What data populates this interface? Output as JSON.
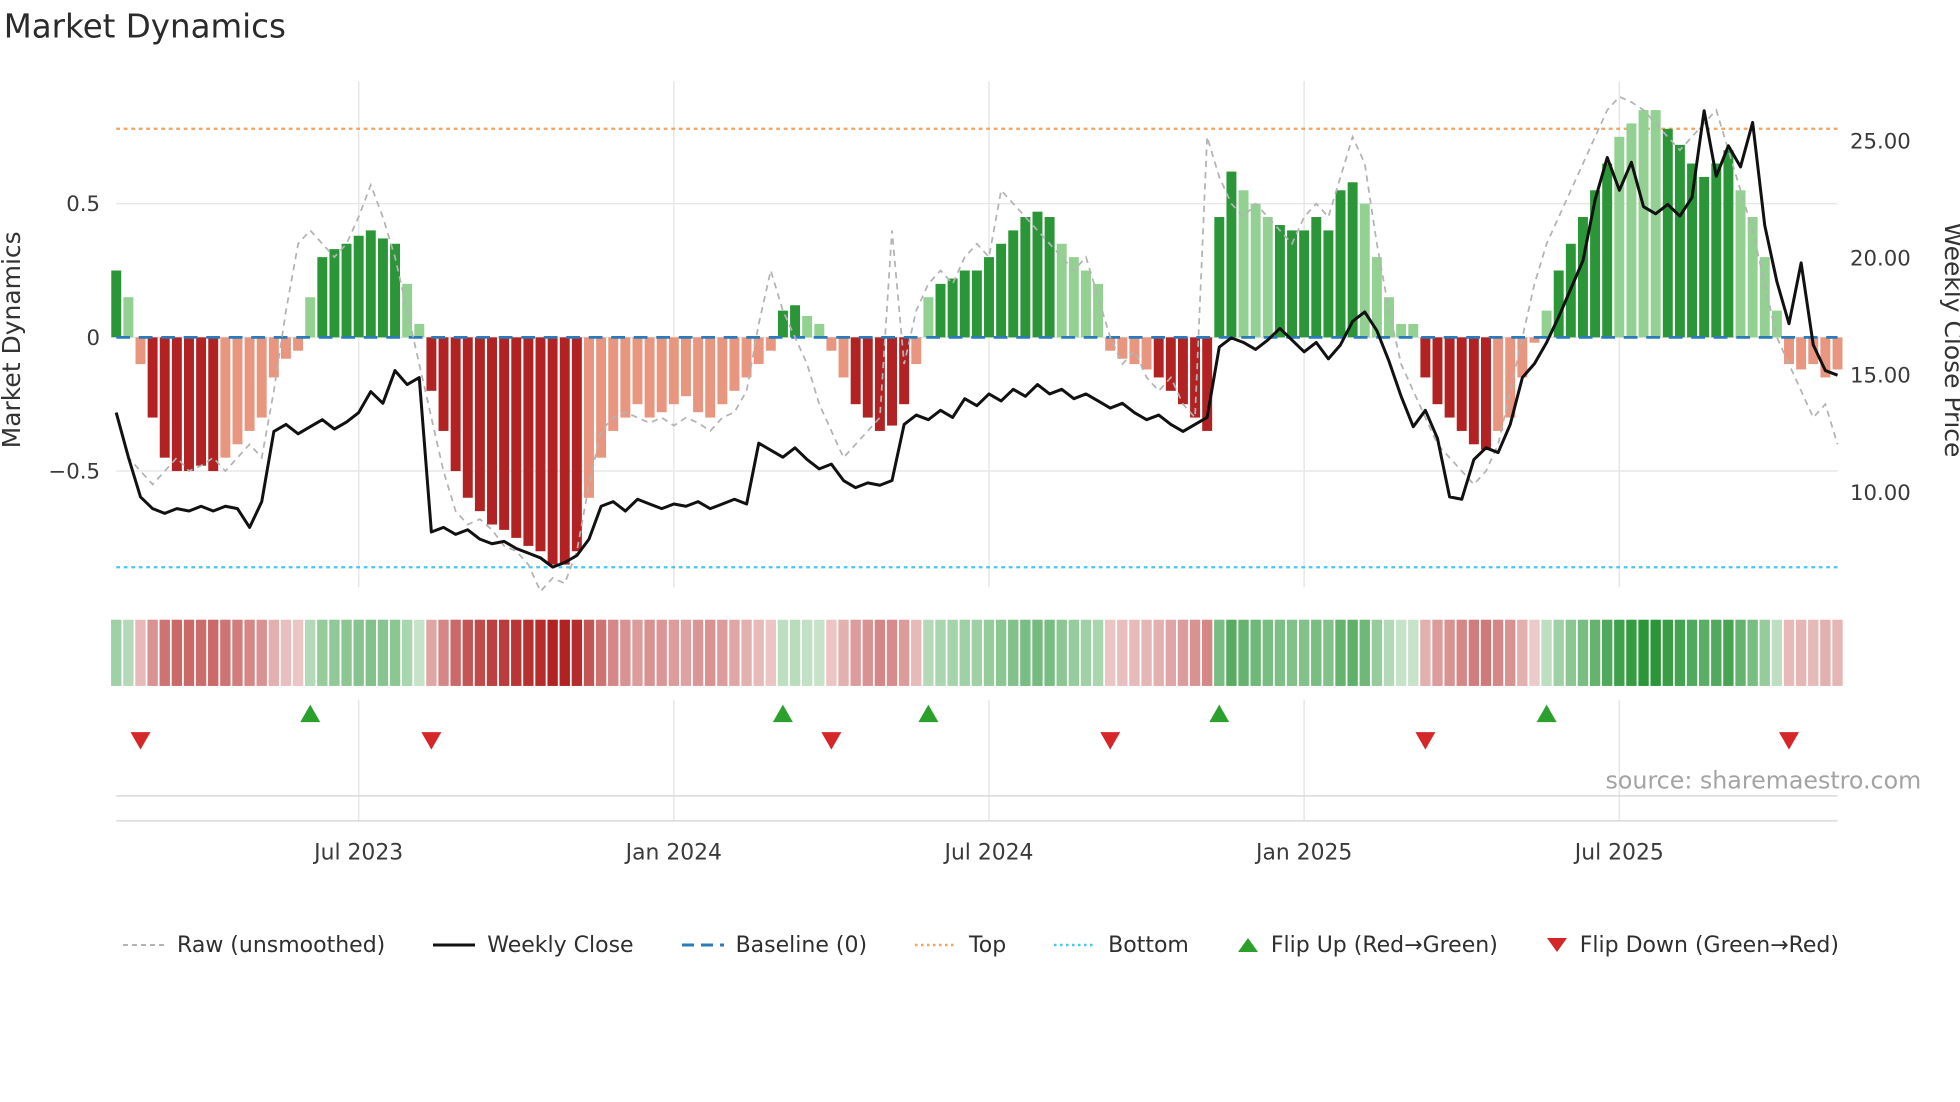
{
  "title": "Market Dynamics",
  "source": "source: sharemaestro.com",
  "legend": [
    {
      "id": "raw",
      "label": "Raw (unsmoothed)",
      "icon": "dashed-gray-line"
    },
    {
      "id": "weekly-close",
      "label": "Weekly Close",
      "icon": "solid-black-line"
    },
    {
      "id": "baseline",
      "label": "Baseline (0)",
      "icon": "dashed-blue-line"
    },
    {
      "id": "top",
      "label": "Top",
      "icon": "dotted-orange-line"
    },
    {
      "id": "bottom",
      "label": "Bottom",
      "icon": "dotted-cyan-line"
    },
    {
      "id": "flip-up",
      "label": "Flip Up (Red→Green)",
      "icon": "green-up-triangle"
    },
    {
      "id": "flip-down",
      "label": "Flip Down (Green→Red)",
      "icon": "red-down-triangle"
    }
  ],
  "colors": {
    "green_dark": "#2a9638",
    "green_light": "#92d192",
    "red_dark": "#b22222",
    "red_light": "#e8967f",
    "raw_line": "#b3b3b3",
    "close_line": "#111111",
    "baseline": "#2b7bba",
    "top_line": "#f0a45e",
    "bottom_line": "#45c9ef",
    "flip_up": "#2ca02c",
    "flip_down": "#d62728",
    "grid": "#e7e7e7",
    "panel_line": "#d9d9d9",
    "axis_text": "#3a3a3a"
  },
  "chart_data": {
    "type": "bar",
    "subtype": "weekly oscillator bars with overlaid lines, heatmap strip and flip markers",
    "title": "Market Dynamics",
    "x_frequency": "weekly",
    "x_ticks": [
      {
        "index": 20,
        "label": "Jul 2023"
      },
      {
        "index": 46,
        "label": "Jan 2024"
      },
      {
        "index": 72,
        "label": "Jul 2024"
      },
      {
        "index": 98,
        "label": "Jan 2025"
      },
      {
        "index": 124,
        "label": "Jul 2025"
      }
    ],
    "left_axis": {
      "label": "Market Dynamics",
      "ticks": [
        {
          "value": 0.5,
          "label": "0.5"
        },
        {
          "value": 0,
          "label": "0"
        },
        {
          "value": -0.5,
          "label": "−0.5"
        }
      ],
      "range": [
        -0.95,
        0.95
      ]
    },
    "right_axis": {
      "label": "Weekly Close Price",
      "ticks": [
        {
          "value": 25,
          "label": "25.00"
        },
        {
          "value": 20,
          "label": "20.00"
        },
        {
          "value": 15,
          "label": "15.00"
        },
        {
          "value": 10,
          "label": "10.00"
        }
      ]
    },
    "baseline": 0,
    "top_level": 0.78,
    "bottom_level": -0.86,
    "heatmap_source": "oscillator values (sign = hue, magnitude = intensity)",
    "flip_up_indices": [
      16,
      55,
      67,
      91,
      118
    ],
    "flip_down_indices": [
      2,
      26,
      59,
      82,
      108,
      138
    ],
    "series": [
      {
        "name": "Market Dynamics",
        "type": "bar",
        "axis": "left",
        "values": [
          0.25,
          0.15,
          -0.1,
          -0.3,
          -0.45,
          -0.5,
          -0.5,
          -0.48,
          -0.5,
          -0.45,
          -0.4,
          -0.35,
          -0.3,
          -0.15,
          -0.08,
          -0.05,
          0.15,
          0.3,
          0.33,
          0.35,
          0.38,
          0.4,
          0.37,
          0.35,
          0.2,
          0.05,
          -0.2,
          -0.35,
          -0.5,
          -0.6,
          -0.65,
          -0.7,
          -0.72,
          -0.75,
          -0.78,
          -0.8,
          -0.85,
          -0.85,
          -0.8,
          -0.6,
          -0.45,
          -0.35,
          -0.3,
          -0.25,
          -0.3,
          -0.28,
          -0.25,
          -0.22,
          -0.28,
          -0.3,
          -0.25,
          -0.2,
          -0.15,
          -0.1,
          -0.05,
          0.1,
          0.12,
          0.08,
          0.05,
          -0.05,
          -0.15,
          -0.25,
          -0.3,
          -0.35,
          -0.33,
          -0.25,
          -0.1,
          0.15,
          0.2,
          0.22,
          0.25,
          0.25,
          0.3,
          0.35,
          0.4,
          0.45,
          0.47,
          0.45,
          0.35,
          0.3,
          0.25,
          0.2,
          -0.05,
          -0.08,
          -0.1,
          -0.12,
          -0.15,
          -0.2,
          -0.25,
          -0.3,
          -0.35,
          0.45,
          0.62,
          0.55,
          0.5,
          0.45,
          0.42,
          0.4,
          0.4,
          0.45,
          0.4,
          0.55,
          0.58,
          0.5,
          0.3,
          0.15,
          0.05,
          0.05,
          -0.15,
          -0.25,
          -0.3,
          -0.35,
          -0.4,
          -0.42,
          -0.35,
          -0.3,
          -0.15,
          -0.02,
          0.1,
          0.25,
          0.35,
          0.45,
          0.55,
          0.65,
          0.75,
          0.8,
          0.85,
          0.85,
          0.78,
          0.72,
          0.65,
          0.6,
          0.65,
          0.7,
          0.55,
          0.45,
          0.3,
          0.1,
          -0.1,
          -0.12,
          -0.1,
          -0.15,
          -0.12
        ],
        "shade": [
          "d",
          "l",
          "l",
          "d",
          "d",
          "d",
          "d",
          "d",
          "d",
          "l",
          "l",
          "l",
          "l",
          "l",
          "l",
          "l",
          "l",
          "d",
          "d",
          "d",
          "d",
          "d",
          "d",
          "d",
          "l",
          "l",
          "d",
          "d",
          "d",
          "d",
          "d",
          "d",
          "d",
          "d",
          "d",
          "d",
          "d",
          "d",
          "d",
          "l",
          "l",
          "l",
          "l",
          "l",
          "l",
          "l",
          "l",
          "l",
          "l",
          "l",
          "l",
          "l",
          "l",
          "l",
          "l",
          "d",
          "d",
          "l",
          "l",
          "l",
          "l",
          "d",
          "d",
          "d",
          "d",
          "d",
          "l",
          "l",
          "d",
          "d",
          "d",
          "d",
          "d",
          "d",
          "d",
          "d",
          "d",
          "d",
          "l",
          "l",
          "l",
          "l",
          "l",
          "l",
          "l",
          "l",
          "d",
          "d",
          "d",
          "d",
          "d",
          "d",
          "d",
          "l",
          "l",
          "l",
          "d",
          "d",
          "d",
          "d",
          "d",
          "d",
          "d",
          "l",
          "l",
          "l",
          "l",
          "l",
          "d",
          "d",
          "d",
          "d",
          "d",
          "d",
          "l",
          "l",
          "l",
          "l",
          "l",
          "d",
          "d",
          "d",
          "d",
          "d",
          "l",
          "l",
          "l",
          "l",
          "d",
          "d",
          "d",
          "d",
          "d",
          "d",
          "l",
          "l",
          "l",
          "l",
          "l",
          "l",
          "l",
          "l",
          "l"
        ]
      },
      {
        "name": "Raw (unsmoothed)",
        "type": "line",
        "axis": "left",
        "values": [
          -0.28,
          -0.45,
          -0.5,
          -0.55,
          -0.5,
          -0.45,
          -0.5,
          -0.48,
          -0.45,
          -0.5,
          -0.45,
          -0.4,
          -0.45,
          -0.2,
          0.1,
          0.35,
          0.4,
          0.35,
          0.3,
          0.35,
          0.45,
          0.57,
          0.45,
          0.3,
          0.1,
          -0.1,
          -0.3,
          -0.5,
          -0.65,
          -0.7,
          -0.68,
          -0.72,
          -0.78,
          -0.8,
          -0.85,
          -0.95,
          -0.9,
          -0.92,
          -0.8,
          -0.55,
          -0.35,
          -0.3,
          -0.28,
          -0.3,
          -0.32,
          -0.3,
          -0.33,
          -0.3,
          -0.32,
          -0.35,
          -0.3,
          -0.28,
          -0.2,
          0.05,
          0.25,
          0.1,
          0.0,
          -0.1,
          -0.25,
          -0.35,
          -0.45,
          -0.4,
          -0.35,
          -0.3,
          0.4,
          -0.1,
          0.1,
          0.2,
          0.25,
          0.2,
          0.3,
          0.35,
          0.3,
          0.55,
          0.5,
          0.45,
          0.4,
          0.35,
          0.3,
          0.25,
          0.3,
          0.15,
          0.0,
          -0.1,
          -0.05,
          -0.15,
          -0.2,
          -0.15,
          -0.25,
          -0.3,
          0.75,
          0.6,
          0.5,
          0.45,
          0.5,
          0.45,
          0.4,
          0.35,
          0.45,
          0.5,
          0.45,
          0.6,
          0.75,
          0.65,
          0.35,
          0.1,
          -0.1,
          -0.2,
          -0.3,
          -0.4,
          -0.45,
          -0.5,
          -0.55,
          -0.5,
          -0.4,
          -0.2,
          0.0,
          0.2,
          0.35,
          0.45,
          0.55,
          0.65,
          0.75,
          0.85,
          0.9,
          0.88,
          0.85,
          0.8,
          0.75,
          0.7,
          0.75,
          0.8,
          0.85,
          0.7,
          0.55,
          0.4,
          0.2,
          0.0,
          -0.1,
          -0.2,
          -0.3,
          -0.25,
          -0.4
        ]
      },
      {
        "name": "Weekly Close",
        "type": "line",
        "axis": "right",
        "values": [
          13.4,
          11.5,
          9.8,
          9.3,
          9.1,
          9.3,
          9.2,
          9.4,
          9.2,
          9.4,
          9.3,
          8.5,
          9.6,
          12.6,
          12.9,
          12.5,
          12.8,
          13.1,
          12.7,
          13.0,
          13.4,
          14.3,
          13.8,
          15.2,
          14.6,
          14.9,
          8.3,
          8.5,
          8.2,
          8.4,
          8.0,
          7.8,
          7.9,
          7.6,
          7.4,
          7.2,
          6.8,
          7.0,
          7.3,
          8.0,
          9.4,
          9.6,
          9.2,
          9.7,
          9.5,
          9.3,
          9.5,
          9.4,
          9.6,
          9.3,
          9.5,
          9.7,
          9.5,
          12.1,
          11.8,
          11.5,
          11.9,
          11.4,
          11.0,
          11.2,
          10.5,
          10.2,
          10.4,
          10.3,
          10.5,
          12.9,
          13.3,
          13.1,
          13.5,
          13.2,
          14.0,
          13.7,
          14.2,
          13.9,
          14.4,
          14.1,
          14.6,
          14.2,
          14.4,
          14.0,
          14.2,
          13.9,
          13.6,
          13.8,
          13.4,
          13.1,
          13.3,
          12.9,
          12.6,
          12.9,
          13.2,
          16.2,
          16.6,
          16.4,
          16.1,
          16.5,
          17.0,
          16.5,
          16.0,
          16.4,
          15.7,
          16.3,
          17.3,
          17.7,
          16.9,
          15.6,
          14.1,
          12.8,
          13.5,
          12.3,
          9.8,
          9.7,
          11.4,
          11.9,
          11.7,
          12.9,
          14.9,
          15.5,
          16.4,
          17.5,
          18.7,
          19.9,
          22.5,
          24.3,
          22.9,
          24.1,
          22.2,
          21.9,
          22.3,
          21.8,
          22.6,
          26.3,
          23.5,
          24.8,
          23.9,
          25.8,
          21.4,
          19.0,
          17.2,
          19.8,
          16.3,
          15.2,
          15.0
        ]
      }
    ]
  }
}
